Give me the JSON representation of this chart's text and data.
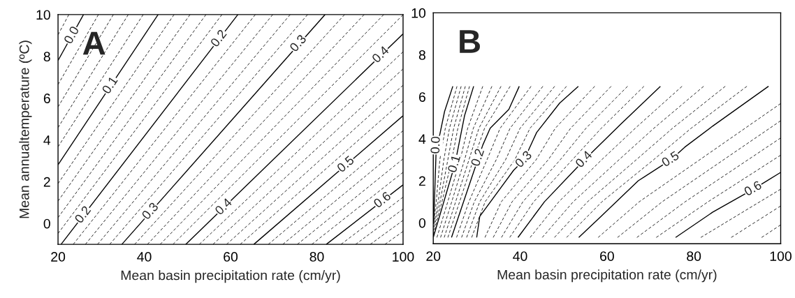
{
  "chart_data": [
    {
      "type": "line",
      "xlabel": "Mean basin precipitation rate (cm/yr)",
      "ylabel": "Mean annualtemperature (ºC)",
      "xlim": [
        20,
        100
      ],
      "ylim": [
        -1,
        10
      ],
      "xticks": [
        20,
        40,
        60,
        80,
        100
      ],
      "yticks": [
        0,
        2,
        4,
        6,
        8,
        10
      ],
      "grid": false,
      "marker": "none",
      "line_style": "solid",
      "series": [
        {
          "color": "#000000",
          "line_style": "dashed",
          "x": [
            20,
            22.5
          ],
          "values": [
            9.03,
            10
          ]
        },
        {
          "color": "#000000",
          "x": [
            20,
            25.9
          ],
          "values": [
            7.8,
            10
          ]
        },
        {
          "color": "#000000",
          "line_style": "dashed",
          "x": [
            20,
            29.36
          ],
          "values": [
            6.65,
            10
          ]
        },
        {
          "color": "#000000",
          "line_style": "dashed",
          "x": [
            20,
            32.82
          ],
          "values": [
            5.58,
            10
          ]
        },
        {
          "color": "#000000",
          "line_style": "dashed",
          "x": [
            20,
            36.28
          ],
          "values": [
            4.59,
            10
          ]
        },
        {
          "color": "#000000",
          "line_style": "dashed",
          "x": [
            20,
            39.74
          ],
          "values": [
            3.67,
            10
          ]
        },
        {
          "color": "#000000",
          "x": [
            20,
            43.2
          ],
          "values": [
            2.81,
            10
          ]
        },
        {
          "color": "#000000",
          "line_style": "dashed",
          "x": [
            20,
            46.9
          ],
          "values": [
            1.91,
            10
          ]
        },
        {
          "color": "#000000",
          "line_style": "dashed",
          "x": [
            20,
            50.6
          ],
          "values": [
            1.07,
            10
          ]
        },
        {
          "color": "#000000",
          "line_style": "dashed",
          "x": [
            20,
            54.3
          ],
          "values": [
            0.28,
            10
          ]
        },
        {
          "color": "#000000",
          "line_style": "dashed",
          "x": [
            20,
            58.0
          ],
          "values": [
            -0.48,
            10
          ]
        },
        {
          "color": "#000000",
          "x": [
            20.7,
            61.7
          ],
          "values": [
            -1,
            10
          ]
        },
        {
          "color": "#000000",
          "line_style": "dashed",
          "x": [
            23.52,
            65.74
          ],
          "values": [
            -1,
            10
          ]
        },
        {
          "color": "#000000",
          "line_style": "dashed",
          "x": [
            26.34,
            69.78
          ],
          "values": [
            -1,
            10
          ]
        },
        {
          "color": "#000000",
          "line_style": "dashed",
          "x": [
            29.16,
            73.82
          ],
          "values": [
            -1,
            10
          ]
        },
        {
          "color": "#000000",
          "line_style": "dashed",
          "x": [
            31.98,
            77.86
          ],
          "values": [
            -1,
            10
          ]
        },
        {
          "color": "#000000",
          "x": [
            34.8,
            81.9
          ],
          "values": [
            -1,
            10
          ]
        },
        {
          "color": "#000000",
          "line_style": "dashed",
          "x": [
            37.76,
            86.44
          ],
          "values": [
            -1,
            10
          ]
        },
        {
          "color": "#000000",
          "line_style": "dashed",
          "x": [
            40.72,
            90.98
          ],
          "values": [
            -1,
            10
          ]
        },
        {
          "color": "#000000",
          "line_style": "dashed",
          "x": [
            43.68,
            95.52
          ],
          "values": [
            -1,
            10
          ]
        },
        {
          "color": "#000000",
          "line_style": "dashed",
          "x": [
            46.64,
            100
          ],
          "values": [
            -1,
            9.99
          ]
        },
        {
          "color": "#000000",
          "x": [
            49.6,
            100
          ],
          "values": [
            -1,
            9.08
          ]
        },
        {
          "color": "#000000",
          "line_style": "dashed",
          "x": [
            52.76,
            100
          ],
          "values": [
            -1,
            8.22
          ]
        },
        {
          "color": "#000000",
          "line_style": "dashed",
          "x": [
            55.92,
            100
          ],
          "values": [
            -1,
            7.4
          ]
        },
        {
          "color": "#000000",
          "line_style": "dashed",
          "x": [
            59.08,
            100
          ],
          "values": [
            -1,
            6.62
          ]
        },
        {
          "color": "#000000",
          "line_style": "dashed",
          "x": [
            62.24,
            100
          ],
          "values": [
            -1,
            5.87
          ]
        },
        {
          "color": "#000000",
          "x": [
            65.4,
            100
          ],
          "values": [
            -1,
            5.16
          ]
        },
        {
          "color": "#000000",
          "line_style": "dashed",
          "x": [
            68.76,
            100
          ],
          "values": [
            -1,
            4.44
          ]
        },
        {
          "color": "#000000",
          "line_style": "dashed",
          "x": [
            72.12,
            100
          ],
          "values": [
            -1,
            3.75
          ]
        },
        {
          "color": "#000000",
          "line_style": "dashed",
          "x": [
            75.48,
            100
          ],
          "values": [
            -1,
            3.09
          ]
        },
        {
          "color": "#000000",
          "line_style": "dashed",
          "x": [
            78.84,
            100
          ],
          "values": [
            -1,
            2.45
          ]
        },
        {
          "color": "#000000",
          "x": [
            82.2,
            100
          ],
          "values": [
            -1,
            1.85
          ]
        },
        {
          "color": "#000000",
          "line_style": "dashed",
          "x": [
            85.6,
            100
          ],
          "values": [
            -1,
            1.26
          ]
        },
        {
          "color": "#000000",
          "line_style": "dashed",
          "x": [
            89.0,
            100
          ],
          "values": [
            -1,
            0.69
          ]
        },
        {
          "color": "#000000",
          "line_style": "dashed",
          "x": [
            92.4,
            100
          ],
          "values": [
            -1,
            0.15
          ]
        },
        {
          "color": "#000000",
          "line_style": "dashed",
          "x": [
            95.8,
            100
          ],
          "values": [
            -1,
            -0.38
          ]
        }
      ],
      "annotations": [
        "A",
        {
          "text": "0.0",
          "x": 23.3,
          "y": 9.0
        },
        {
          "text": "0.1",
          "x": 32.2,
          "y": 6.6
        },
        {
          "text": "0.2",
          "x": 25.9,
          "y": 0.4
        },
        {
          "text": "0.2",
          "x": 57.4,
          "y": 8.84
        },
        {
          "text": "0.3",
          "x": 41.5,
          "y": 0.57
        },
        {
          "text": "0.3",
          "x": 75.8,
          "y": 8.6
        },
        {
          "text": "0.4",
          "x": 58.5,
          "y": 0.78
        },
        {
          "text": "0.4",
          "x": 94.9,
          "y": 8.06
        },
        {
          "text": "0.5",
          "x": 86.8,
          "y": 2.81
        },
        {
          "text": "0.6",
          "x": 95.3,
          "y": 1.1
        }
      ]
    },
    {
      "type": "line",
      "xlabel": "Mean basin precipitation rate (cm/yr)",
      "xlim": [
        20,
        100
      ],
      "ylim": [
        -1,
        10
      ],
      "xticks": [
        20,
        40,
        60,
        80,
        100
      ],
      "yticks": [
        0,
        2,
        4,
        6,
        8,
        10
      ],
      "grid": false,
      "marker": "none",
      "line_style": "solid",
      "series": [
        {
          "color": "#000000",
          "x": [
            20.1,
            20.7,
            21.5,
            22.6,
            24.5
          ],
          "values": [
            0.0,
            3.7,
            4.2,
            5.3,
            6.5
          ]
        },
        {
          "color": "#000000",
          "line_style": "dashed",
          "x": [
            20,
            20.69,
            21.51,
            22.77,
            25.46
          ],
          "values": [
            -0.14,
            1.0,
            3.0,
            4.5,
            6.5
          ]
        },
        {
          "color": "#000000",
          "line_style": "dashed",
          "x": [
            20,
            21.13,
            22.43,
            23.73,
            26.42
          ],
          "values": [
            -0.28,
            1.0,
            3.0,
            4.5,
            6.5
          ]
        },
        {
          "color": "#000000",
          "line_style": "dashed",
          "x": [
            20,
            21.56,
            23.35,
            24.7,
            27.38
          ],
          "values": [
            -0.42,
            1.0,
            3.0,
            4.5,
            6.5
          ]
        },
        {
          "color": "#000000",
          "line_style": "dashed",
          "x": [
            20,
            22.0,
            24.27,
            25.66,
            28.34
          ],
          "values": [
            -0.56,
            1.0,
            3.0,
            4.5,
            6.5
          ]
        },
        {
          "color": "#000000",
          "x": [
            20.0,
            25.0,
            27.2,
            29.3
          ],
          "values": [
            -0.7,
            2.8,
            5.1,
            6.5
          ]
        },
        {
          "color": "#000000",
          "line_style": "dashed",
          "x": [
            20.84,
            23.34,
            26.2,
            27.92,
            31.4
          ],
          "values": [
            -0.7,
            1.0,
            3.0,
            4.5,
            6.5
          ]
        },
        {
          "color": "#000000",
          "line_style": "dashed",
          "x": [
            21.68,
            24.25,
            27.21,
            29.22,
            33.5
          ],
          "values": [
            -0.7,
            1.0,
            3.0,
            4.5,
            6.5
          ]
        },
        {
          "color": "#000000",
          "line_style": "dashed",
          "x": [
            22.52,
            25.15,
            28.22,
            30.51,
            35.6
          ],
          "values": [
            -0.7,
            1.0,
            3.0,
            4.5,
            6.5
          ]
        },
        {
          "color": "#000000",
          "line_style": "dashed",
          "x": [
            23.36,
            26.06,
            29.23,
            31.81,
            37.7
          ],
          "values": [
            -0.7,
            1.0,
            3.0,
            4.5,
            6.5
          ]
        },
        {
          "color": "#000000",
          "x": [
            24.2,
            30.4,
            31.4,
            33.1,
            37.4,
            39.8
          ],
          "values": [
            -0.7,
            3.1,
            3.7,
            4.5,
            5.4,
            6.5
          ]
        },
        {
          "color": "#000000",
          "line_style": "dashed",
          "x": [
            25.36,
            28.21,
            32.37,
            35.39,
            42.52
          ],
          "values": [
            -0.7,
            1.0,
            3.0,
            4.5,
            6.5
          ]
        },
        {
          "color": "#000000",
          "line_style": "dashed",
          "x": [
            26.52,
            29.45,
            34.5,
            37.68,
            45.24
          ],
          "values": [
            -0.7,
            1.0,
            3.0,
            4.5,
            6.5
          ]
        },
        {
          "color": "#000000",
          "line_style": "dashed",
          "x": [
            27.68,
            30.7,
            36.64,
            39.98,
            47.96
          ],
          "values": [
            -0.7,
            1.0,
            3.0,
            4.5,
            6.5
          ]
        },
        {
          "color": "#000000",
          "line_style": "dashed",
          "x": [
            28.84,
            31.94,
            38.77,
            42.27,
            50.68
          ],
          "values": [
            -0.7,
            1.0,
            3.0,
            4.5,
            6.5
          ]
        },
        {
          "color": "#000000",
          "x": [
            30.0,
            30.7,
            38.5,
            40.9,
            43.8,
            49.1,
            53.4
          ],
          "values": [
            -0.7,
            0.3,
            2.5,
            3.0,
            4.3,
            5.7,
            6.5
          ]
        },
        {
          "color": "#000000",
          "line_style": "dashed",
          "x": [
            31.9,
            35.66,
            43.68,
            48.09,
            57.18
          ],
          "values": [
            -0.7,
            1.0,
            3.0,
            4.5,
            6.5
          ]
        },
        {
          "color": "#000000",
          "line_style": "dashed",
          "x": [
            33.8,
            38.15,
            46.46,
            51.62,
            60.96
          ],
          "values": [
            -0.7,
            1.0,
            3.0,
            4.5,
            6.5
          ]
        },
        {
          "color": "#000000",
          "line_style": "dashed",
          "x": [
            35.7,
            40.63,
            49.24,
            55.15,
            64.74
          ],
          "values": [
            -0.7,
            1.0,
            3.0,
            4.5,
            6.5
          ]
        },
        {
          "color": "#000000",
          "line_style": "dashed",
          "x": [
            37.6,
            43.12,
            52.02,
            58.68,
            68.52
          ],
          "values": [
            -0.7,
            1.0,
            3.0,
            4.5,
            6.5
          ]
        },
        {
          "color": "#000000",
          "x": [
            39.5,
            45.6,
            54.8,
            63.2,
            72.3
          ],
          "values": [
            -0.7,
            1.0,
            3.0,
            4.7,
            6.5
          ]
        },
        {
          "color": "#000000",
          "line_style": "dashed",
          "x": [
            42.3,
            48.91,
            58.78,
            66.5,
            77.28
          ],
          "values": [
            -0.7,
            1.0,
            3.0,
            4.5,
            6.5
          ]
        },
        {
          "color": "#000000",
          "line_style": "dashed",
          "x": [
            45.1,
            52.22,
            62.76,
            70.79,
            82.26
          ],
          "values": [
            -0.7,
            1.0,
            3.0,
            4.5,
            6.5
          ]
        },
        {
          "color": "#000000",
          "line_style": "dashed",
          "x": [
            47.9,
            55.52,
            66.74,
            75.08,
            87.24
          ],
          "values": [
            -0.7,
            1.0,
            3.0,
            4.5,
            6.5
          ]
        },
        {
          "color": "#000000",
          "line_style": "dashed",
          "x": [
            50.7,
            58.83,
            70.72,
            79.37,
            92.22
          ],
          "values": [
            -0.7,
            1.0,
            3.0,
            4.5,
            6.5
          ]
        },
        {
          "color": "#000000",
          "x": [
            53.5,
            58.6,
            67.2,
            74.7,
            77.9,
            84.3,
            97.2
          ],
          "values": [
            -0.7,
            0.3,
            2.0,
            3.0,
            3.6,
            4.6,
            6.5
          ]
        },
        {
          "color": "#000000",
          "line_style": "dashed",
          "x": [
            57.96,
            67.43,
            100
          ],
          "values": [
            -0.7,
            1.0,
            5.68
          ]
        },
        {
          "color": "#000000",
          "line_style": "dashed",
          "x": [
            62.42,
            72.71,
            100
          ],
          "values": [
            -0.7,
            1.0,
            4.86
          ]
        },
        {
          "color": "#000000",
          "line_style": "dashed",
          "x": [
            66.88,
            78.0,
            100
          ],
          "values": [
            -0.7,
            1.0,
            4.04
          ]
        },
        {
          "color": "#000000",
          "line_style": "dashed",
          "x": [
            71.34,
            83.28,
            100
          ],
          "values": [
            -0.7,
            1.0,
            3.22
          ]
        },
        {
          "color": "#000000",
          "x": [
            75.8,
            84.3,
            93.7,
            100
          ],
          "values": [
            -0.7,
            0.5,
            1.6,
            2.4
          ]
        },
        {
          "color": "#000000",
          "line_style": "dashed",
          "x": [
            81.6,
            100
          ],
          "values": [
            -0.7,
            1.6
          ]
        },
        {
          "color": "#000000",
          "line_style": "dashed",
          "x": [
            88.6,
            100
          ],
          "values": [
            -0.7,
            0.8
          ]
        },
        {
          "color": "#000000",
          "line_style": "dashed",
          "x": [
            95.6,
            100
          ],
          "values": [
            -0.7,
            -0.1
          ]
        }
      ],
      "annotations": [
        "B",
        {
          "text": "0.0",
          "x": 20.7,
          "y": 3.7
        },
        {
          "text": "0.1",
          "x": 25.0,
          "y": 2.8
        },
        {
          "text": "0.2",
          "x": 30.4,
          "y": 3.1
        },
        {
          "text": "0.3",
          "x": 40.9,
          "y": 3.0
        },
        {
          "text": "0.4",
          "x": 54.8,
          "y": 3.0
        },
        {
          "text": "0.5",
          "x": 74.7,
          "y": 3.0
        },
        {
          "text": "0.6",
          "x": 93.7,
          "y": 1.6
        }
      ]
    }
  ]
}
